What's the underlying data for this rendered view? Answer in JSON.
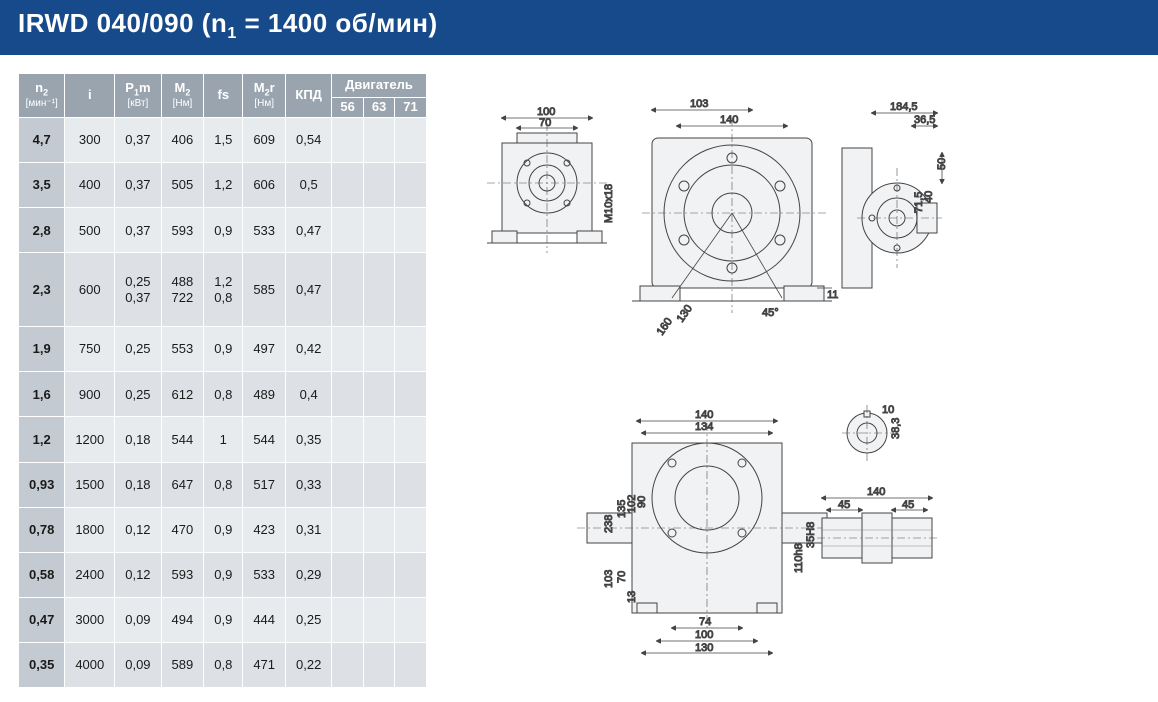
{
  "header": {
    "title_prefix": "IRWD 040/090 (n",
    "title_sub": "1",
    "title_suffix": " = 1400 об/мин)"
  },
  "colors": {
    "header_bg": "#164a8a",
    "th_bg": "#9aa4af",
    "row_odd": "#e8ebee",
    "row_even": "#dde1e6",
    "firstcol_bg": "#c3cad1",
    "drawing_fill": "#f0f2f4",
    "stroke": "#444444"
  },
  "table": {
    "headers": {
      "n2": "n",
      "n2_sub": "2",
      "n2_unit": "[мин⁻¹]",
      "i": "i",
      "p1m": "P",
      "p1m_sub": "1",
      "p1m_suffix": "m",
      "p1m_unit": "[кВт]",
      "m2": "M",
      "m2_sub": "2",
      "m2_unit": "[Нм]",
      "fs": "fs",
      "m2r": "M",
      "m2r_sub": "2",
      "m2r_suffix": "r",
      "m2r_unit": "[Нм]",
      "kpd": "КПД",
      "motor": "Двигатель",
      "motor_56": "56",
      "motor_63": "63",
      "motor_71": "71"
    },
    "rows": [
      {
        "n2": "4,7",
        "i": "300",
        "p1m": "0,37",
        "m2": "406",
        "fs": "1,5",
        "m2r": "609",
        "kpd": "0,54"
      },
      {
        "n2": "3,5",
        "i": "400",
        "p1m": "0,37",
        "m2": "505",
        "fs": "1,2",
        "m2r": "606",
        "kpd": "0,5"
      },
      {
        "n2": "2,8",
        "i": "500",
        "p1m": "0,37",
        "m2": "593",
        "fs": "0,9",
        "m2r": "533",
        "kpd": "0,47"
      },
      {
        "n2": "2,3",
        "i": "600",
        "p1m": "0,25\n0,37",
        "m2": "488\n722",
        "fs": "1,2\n0,8",
        "m2r": "585",
        "kpd": "0,47"
      },
      {
        "n2": "1,9",
        "i": "750",
        "p1m": "0,25",
        "m2": "553",
        "fs": "0,9",
        "m2r": "497",
        "kpd": "0,42"
      },
      {
        "n2": "1,6",
        "i": "900",
        "p1m": "0,25",
        "m2": "612",
        "fs": "0,8",
        "m2r": "489",
        "kpd": "0,4"
      },
      {
        "n2": "1,2",
        "i": "1200",
        "p1m": "0,18",
        "m2": "544",
        "fs": "1",
        "m2r": "544",
        "kpd": "0,35"
      },
      {
        "n2": "0,93",
        "i": "1500",
        "p1m": "0,18",
        "m2": "647",
        "fs": "0,8",
        "m2r": "517",
        "kpd": "0,33"
      },
      {
        "n2": "0,78",
        "i": "1800",
        "p1m": "0,12",
        "m2": "470",
        "fs": "0,9",
        "m2r": "423",
        "kpd": "0,31"
      },
      {
        "n2": "0,58",
        "i": "2400",
        "p1m": "0,12",
        "m2": "593",
        "fs": "0,9",
        "m2r": "533",
        "kpd": "0,29"
      },
      {
        "n2": "0,47",
        "i": "3000",
        "p1m": "0,09",
        "m2": "494",
        "fs": "0,9",
        "m2r": "444",
        "kpd": "0,25"
      },
      {
        "n2": "0,35",
        "i": "4000",
        "p1m": "0,09",
        "m2": "589",
        "fs": "0,8",
        "m2r": "471",
        "kpd": "0,22"
      }
    ]
  },
  "dimensions": {
    "top_block": [
      "100",
      "70",
      "103",
      "140",
      "184,5",
      "36,5"
    ],
    "top_right": [
      "50",
      "40",
      "71,5"
    ],
    "top_misc": [
      "M10x18",
      "130",
      "160",
      "45°",
      "11"
    ],
    "bottom_block": [
      "140",
      "134",
      "238",
      "135",
      "102",
      "90",
      "103",
      "70",
      "13",
      "74",
      "100",
      "130",
      "110h8"
    ],
    "bottom_right": [
      "10",
      "38,3",
      "140",
      "45",
      "45",
      "35H8"
    ]
  }
}
